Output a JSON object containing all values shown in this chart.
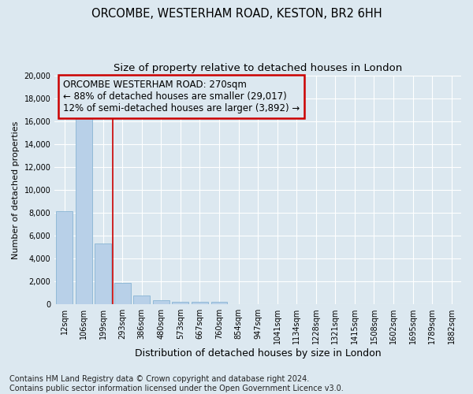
{
  "title": "ORCOMBE, WESTERHAM ROAD, KESTON, BR2 6HH",
  "subtitle": "Size of property relative to detached houses in London",
  "xlabel": "Distribution of detached houses by size in London",
  "ylabel": "Number of detached properties",
  "bar_labels": [
    "12sqm",
    "106sqm",
    "199sqm",
    "293sqm",
    "386sqm",
    "480sqm",
    "573sqm",
    "667sqm",
    "760sqm",
    "854sqm",
    "947sqm",
    "1041sqm",
    "1134sqm",
    "1228sqm",
    "1321sqm",
    "1415sqm",
    "1508sqm",
    "1602sqm",
    "1695sqm",
    "1789sqm",
    "1882sqm"
  ],
  "bar_values": [
    8100,
    16500,
    5300,
    1850,
    750,
    320,
    220,
    180,
    200,
    0,
    0,
    0,
    0,
    0,
    0,
    0,
    0,
    0,
    0,
    0,
    0
  ],
  "bar_color": "#b8d0e8",
  "bar_edge_color": "#88b4d4",
  "vline_x": 2.5,
  "vline_color": "#cc0000",
  "annotation_line1": "ORCOMBE WESTERHAM ROAD: 270sqm",
  "annotation_line2": "← 88% of detached houses are smaller (29,017)",
  "annotation_line3": "12% of semi-detached houses are larger (3,892) →",
  "annotation_box_color": "#cc0000",
  "ylim": [
    0,
    20000
  ],
  "yticks": [
    0,
    2000,
    4000,
    6000,
    8000,
    10000,
    12000,
    14000,
    16000,
    18000,
    20000
  ],
  "background_color": "#dce8f0",
  "plot_bg_color": "#dce8f0",
  "footer_text": "Contains HM Land Registry data © Crown copyright and database right 2024.\nContains public sector information licensed under the Open Government Licence v3.0.",
  "title_fontsize": 10.5,
  "subtitle_fontsize": 9.5,
  "xlabel_fontsize": 9,
  "ylabel_fontsize": 8,
  "tick_fontsize": 7,
  "annotation_fontsize": 8.5,
  "footer_fontsize": 7
}
